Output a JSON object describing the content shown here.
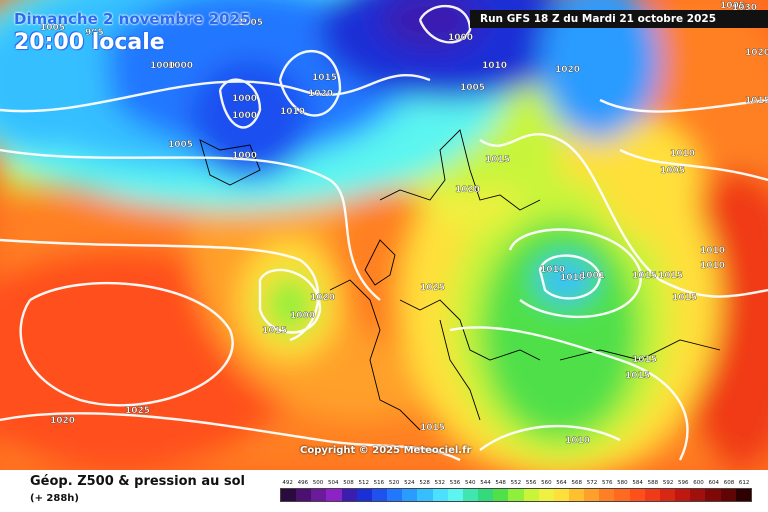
{
  "header": {
    "date_line": "Dimanche 2 novembre 2025",
    "time_line": "20:00 locale",
    "run_info": "Run GFS 18 Z du Mardi 21 octobre 2025"
  },
  "copyright": "Copyright © 2025 Meteociel.fr",
  "footer": {
    "title": "Géop. Z500 & pression au sol",
    "subtitle": "(+ 288h)"
  },
  "legend": {
    "values": [
      "492",
      "496",
      "500",
      "504",
      "508",
      "512",
      "516",
      "520",
      "524",
      "528",
      "532",
      "536",
      "540",
      "544",
      "548",
      "552",
      "556",
      "560",
      "564",
      "568",
      "572",
      "576",
      "580",
      "584",
      "588",
      "592",
      "596",
      "600",
      "604",
      "608",
      "612"
    ],
    "colors": [
      "#2b0a3d",
      "#4b1070",
      "#6a1a9a",
      "#8c23c4",
      "#3b1eb0",
      "#1a2fd6",
      "#1f50f0",
      "#2277ff",
      "#2a9bff",
      "#36bfff",
      "#4be0ff",
      "#5cf5f0",
      "#3fe6b0",
      "#33d97a",
      "#4fe04a",
      "#8ef03a",
      "#c8f53a",
      "#f0f040",
      "#ffe03a",
      "#ffc030",
      "#ffa02a",
      "#ff8024",
      "#ff6a20",
      "#ff501c",
      "#f03a18",
      "#d82814",
      "#c01810",
      "#a0100c",
      "#800808",
      "#600404",
      "#300000"
    ]
  },
  "pressure_labels": [
    {
      "text": "1005"
    },
    {
      "text": "995"
    },
    {
      "text": "1000"
    },
    {
      "text": "1000"
    },
    {
      "text": "1005"
    },
    {
      "text": "1015"
    },
    {
      "text": "1020"
    },
    {
      "text": "1000"
    },
    {
      "text": "1000"
    },
    {
      "text": "1010"
    },
    {
      "text": "1005"
    },
    {
      "text": "1000"
    },
    {
      "text": "1000"
    },
    {
      "text": "1005"
    },
    {
      "text": "1010"
    },
    {
      "text": "1020"
    },
    {
      "text": "1005"
    },
    {
      "text": "1015"
    },
    {
      "text": "1020"
    },
    {
      "text": "1030"
    },
    {
      "text": "1020"
    },
    {
      "text": "1015"
    },
    {
      "text": "1010"
    },
    {
      "text": "1005"
    },
    {
      "text": "1010"
    },
    {
      "text": "1010"
    },
    {
      "text": "1020"
    },
    {
      "text": "1000"
    },
    {
      "text": "1015"
    },
    {
      "text": "1025"
    },
    {
      "text": "1010"
    },
    {
      "text": "1001"
    },
    {
      "text": "1015"
    },
    {
      "text": "1015"
    },
    {
      "text": "1015"
    },
    {
      "text": "1015"
    },
    {
      "text": "1015"
    },
    {
      "text": "1025"
    },
    {
      "text": "1020"
    },
    {
      "text": "1015"
    },
    {
      "text": "1010"
    },
    {
      "text": "1010"
    }
  ]
}
